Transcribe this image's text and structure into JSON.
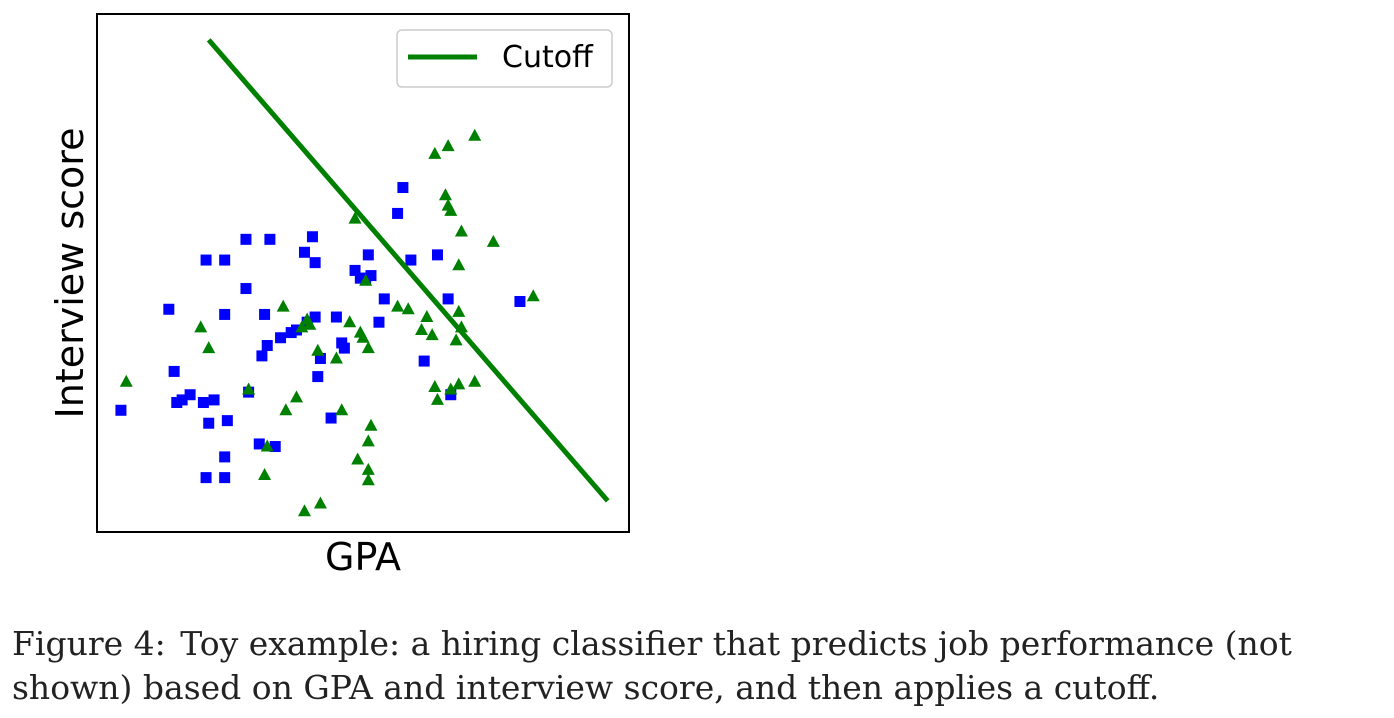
{
  "colors": {
    "square_series": "#0000ff",
    "triangle_series": "#008000",
    "cutoff_line": "#008000"
  },
  "chart_data": {
    "type": "scatter",
    "xlabel": "GPA",
    "ylabel": "Interview score",
    "xlim": [
      0,
      100
    ],
    "ylim": [
      0,
      100
    ],
    "ticks_shown": false,
    "grid": false,
    "legend": {
      "placement": "top-right",
      "entries": [
        "Cutoff"
      ]
    },
    "series": [
      {
        "marker": "square",
        "color": "#0000ff",
        "points": [
          [
            4.5,
            23.5
          ],
          [
            13.5,
            43
          ],
          [
            14.5,
            31
          ],
          [
            15,
            25
          ],
          [
            16,
            25.5
          ],
          [
            17.5,
            26.5
          ],
          [
            20.5,
            52.5
          ],
          [
            20,
            25
          ],
          [
            21,
            21
          ],
          [
            20.5,
            10.5
          ],
          [
            22,
            25.5
          ],
          [
            24,
            10.5
          ],
          [
            24,
            14.5
          ],
          [
            24.5,
            21.5
          ],
          [
            24,
            42
          ],
          [
            24,
            52.5
          ],
          [
            28,
            56.5
          ],
          [
            28,
            47
          ],
          [
            28.5,
            27
          ],
          [
            30.5,
            17
          ],
          [
            31,
            34
          ],
          [
            31.5,
            42
          ],
          [
            32,
            36
          ],
          [
            32.5,
            56.5
          ],
          [
            33.5,
            16.5
          ],
          [
            34.5,
            37.5
          ],
          [
            36.5,
            38.5
          ],
          [
            37.5,
            39
          ],
          [
            39,
            54
          ],
          [
            39.5,
            40.5
          ],
          [
            40.5,
            57
          ],
          [
            41,
            52
          ],
          [
            41.5,
            30
          ],
          [
            41,
            41.5
          ],
          [
            42,
            33.5
          ],
          [
            44,
            22
          ],
          [
            45,
            41.5
          ],
          [
            46,
            36.5
          ],
          [
            46.5,
            35.5
          ],
          [
            48.5,
            50.5
          ],
          [
            49.5,
            49
          ],
          [
            50.5,
            49
          ],
          [
            51,
            53.5
          ],
          [
            51.5,
            49.5
          ],
          [
            53,
            40.5
          ],
          [
            54,
            45
          ],
          [
            56.5,
            61.5
          ],
          [
            59,
            52.5
          ],
          [
            57.5,
            66.5
          ],
          [
            61.5,
            33
          ],
          [
            64,
            53.5
          ],
          [
            66,
            45
          ],
          [
            66.5,
            26.5
          ],
          [
            79.5,
            44.5
          ]
        ]
      },
      {
        "marker": "triangle",
        "color": "#008000",
        "points": [
          [
            5.5,
            29
          ],
          [
            19.5,
            39.5
          ],
          [
            21,
            35.5
          ],
          [
            28.5,
            27.5
          ],
          [
            32,
            16.5
          ],
          [
            31.5,
            11
          ],
          [
            35,
            43.5
          ],
          [
            35.5,
            23.5
          ],
          [
            37.5,
            26
          ],
          [
            38.5,
            39.5
          ],
          [
            39,
            4
          ],
          [
            39.5,
            41
          ],
          [
            40,
            40
          ],
          [
            41.5,
            35
          ],
          [
            42,
            5.5
          ],
          [
            45,
            33.5
          ],
          [
            46,
            23.5
          ],
          [
            47.5,
            40.5
          ],
          [
            48.5,
            60.5
          ],
          [
            49,
            14
          ],
          [
            49.5,
            38.5
          ],
          [
            50,
            37.5
          ],
          [
            50.5,
            48.5
          ],
          [
            51,
            35.5
          ],
          [
            51,
            17.5
          ],
          [
            51,
            12
          ],
          [
            51,
            10
          ],
          [
            51.5,
            20.5
          ],
          [
            56.5,
            43.5
          ],
          [
            58.5,
            43
          ],
          [
            61,
            39
          ],
          [
            62,
            41.5
          ],
          [
            63,
            38
          ],
          [
            63.5,
            73
          ],
          [
            63.5,
            28
          ],
          [
            64,
            25.5
          ],
          [
            66,
            74.5
          ],
          [
            65.5,
            65
          ],
          [
            66,
            63
          ],
          [
            66.5,
            62
          ],
          [
            66.5,
            27.5
          ],
          [
            67.5,
            37
          ],
          [
            68,
            42.5
          ],
          [
            68.5,
            39.5
          ],
          [
            68,
            28.5
          ],
          [
            68,
            51.5
          ],
          [
            68.5,
            58
          ],
          [
            71,
            29
          ],
          [
            71,
            76.5
          ],
          [
            74.5,
            56
          ],
          [
            82,
            45.5
          ]
        ]
      }
    ],
    "lines": [
      {
        "name": "Cutoff",
        "color": "#008000",
        "x": [
          21,
          96
        ],
        "y": [
          95,
          6
        ]
      }
    ]
  },
  "caption": {
    "label": "Figure 4:",
    "text": "Toy example: a hiring classifier that predicts job performance (not shown) based on GPA and interview score, and then applies a cutoff."
  }
}
